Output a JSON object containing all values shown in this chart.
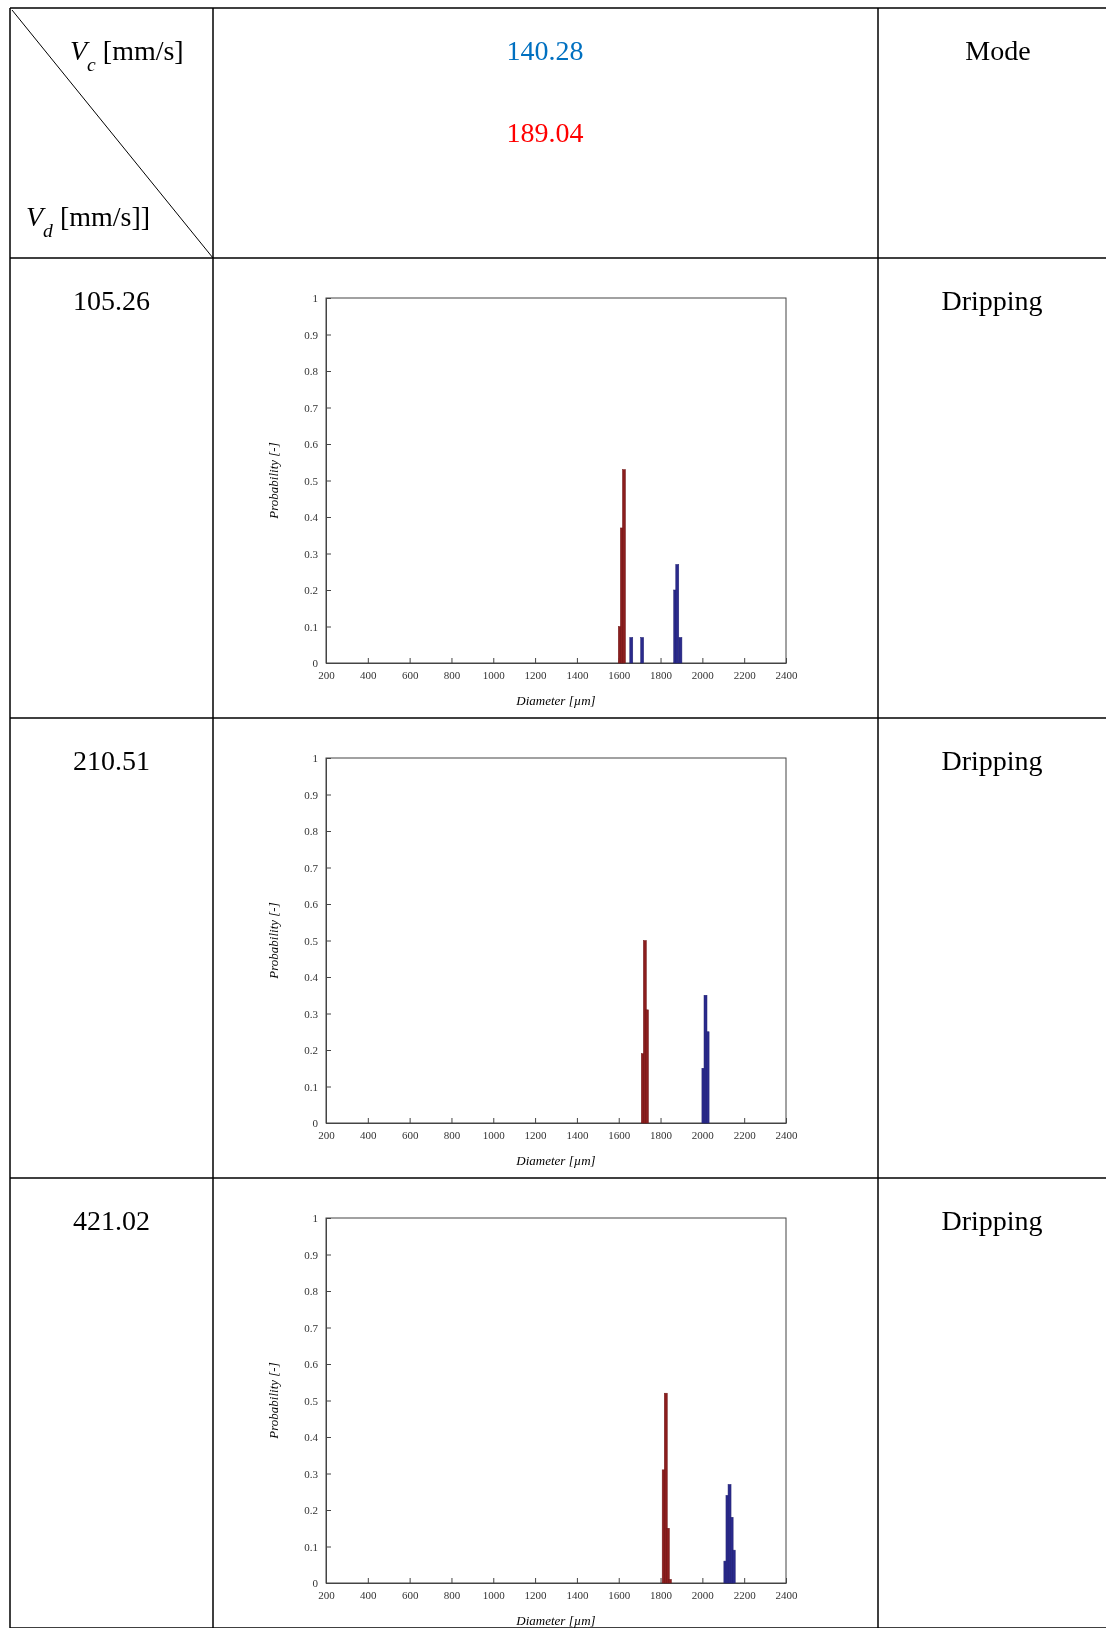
{
  "chart_data": [
    {
      "type": "other",
      "annotations": [
        "V$_{c}$ [mm/s]",
        "140.28",
        "189.04",
        "Mode",
        "V$_{d}$ [mm/s]]"
      ]
    },
    {
      "type": "bar",
      "xlabel": "Diameter [µm]",
      "ylabel": "Probability [-]",
      "annotations": [
        "105.26",
        "Dripping"
      ],
      "xlim": [
        200,
        2400
      ],
      "xticks": [
        200,
        400,
        600,
        800,
        1000,
        1200,
        1400,
        1600,
        1800,
        2000,
        2200,
        2400
      ],
      "ylim": [
        0,
        1
      ],
      "yticks": [
        0,
        0.1,
        0.2,
        0.3,
        0.4,
        0.5,
        0.6,
        0.7,
        0.8,
        0.9,
        1
      ],
      "grid": false,
      "series": [
        {
          "color": "#2a2a8c",
          "x": [
            1660,
            1712,
            1870,
            1880,
            1895
          ],
          "values": [
            0.07,
            0.07,
            0.2,
            0.27,
            0.07
          ]
        },
        {
          "color": "#8b1e1e",
          "x": [
            1605,
            1615,
            1625
          ],
          "values": [
            0.1,
            0.37,
            0.53
          ]
        }
      ]
    },
    {
      "type": "bar",
      "xlabel": "Diameter [µm]",
      "ylabel": "Probability [-]",
      "annotations": [
        "210.51",
        "Dripping"
      ],
      "xlim": [
        200,
        2400
      ],
      "xticks": [
        200,
        400,
        600,
        800,
        1000,
        1200,
        1400,
        1600,
        1800,
        2000,
        2200,
        2400
      ],
      "ylim": [
        0,
        1
      ],
      "yticks": [
        0,
        0.1,
        0.2,
        0.3,
        0.4,
        0.5,
        0.6,
        0.7,
        0.8,
        0.9,
        1
      ],
      "grid": false,
      "series": [
        {
          "color": "#2a2a8c",
          "x": [
            2005,
            2015,
            2025
          ],
          "values": [
            0.15,
            0.35,
            0.25
          ]
        },
        {
          "color": "#8b1e1e",
          "x": [
            1715,
            1725,
            1735
          ],
          "values": [
            0.19,
            0.5,
            0.31
          ]
        }
      ]
    },
    {
      "type": "bar",
      "xlabel": "Diameter [µm]",
      "ylabel": "Probability [-]",
      "annotations": [
        "421.02",
        "Dripping"
      ],
      "xlim": [
        200,
        2400
      ],
      "xticks": [
        200,
        400,
        600,
        800,
        1000,
        1200,
        1400,
        1600,
        1800,
        2000,
        2200,
        2400
      ],
      "ylim": [
        0,
        1
      ],
      "yticks": [
        0,
        0.1,
        0.2,
        0.3,
        0.4,
        0.5,
        0.6,
        0.7,
        0.8,
        0.9,
        1
      ],
      "grid": false,
      "series": [
        {
          "color": "#2a2a8c",
          "x": [
            2110,
            2120,
            2130,
            2140,
            2150
          ],
          "values": [
            0.06,
            0.24,
            0.27,
            0.18,
            0.09
          ]
        },
        {
          "color": "#8b1e1e",
          "x": [
            1815,
            1825,
            1835,
            1845
          ],
          "values": [
            0.31,
            0.52,
            0.15,
            0.01
          ]
        }
      ]
    }
  ]
}
